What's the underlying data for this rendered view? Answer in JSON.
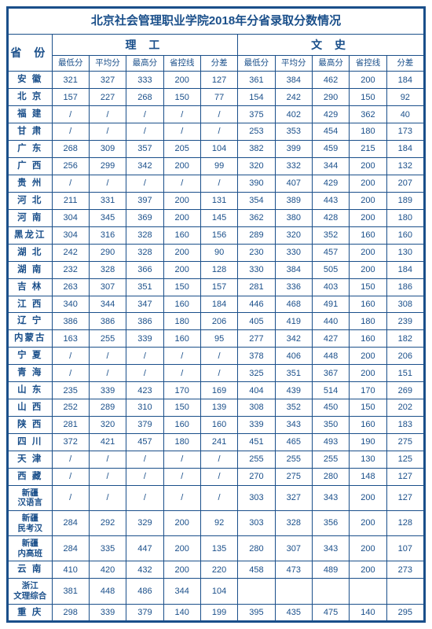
{
  "title": "北京社会管理职业学院2018年分省录取分数情况",
  "province_header": "省 份",
  "groups": [
    "理 工",
    "文 史"
  ],
  "sub_headers": [
    "最低分",
    "平均分",
    "最高分",
    "省控线",
    "分差",
    "最低分",
    "平均分",
    "最高分",
    "省控线",
    "分差"
  ],
  "rows": [
    {
      "p": "安 徽",
      "v": [
        "321",
        "327",
        "333",
        "200",
        "127",
        "361",
        "384",
        "462",
        "200",
        "184"
      ]
    },
    {
      "p": "北 京",
      "v": [
        "157",
        "227",
        "268",
        "150",
        "77",
        "154",
        "242",
        "290",
        "150",
        "92"
      ]
    },
    {
      "p": "福 建",
      "v": [
        "/",
        "/",
        "/",
        "/",
        "/",
        "375",
        "402",
        "429",
        "362",
        "40"
      ]
    },
    {
      "p": "甘 肃",
      "v": [
        "/",
        "/",
        "/",
        "/",
        "/",
        "253",
        "353",
        "454",
        "180",
        "173"
      ]
    },
    {
      "p": "广 东",
      "v": [
        "268",
        "309",
        "357",
        "205",
        "104",
        "382",
        "399",
        "459",
        "215",
        "184"
      ]
    },
    {
      "p": "广 西",
      "v": [
        "256",
        "299",
        "342",
        "200",
        "99",
        "320",
        "332",
        "344",
        "200",
        "132"
      ]
    },
    {
      "p": "贵 州",
      "v": [
        "/",
        "/",
        "/",
        "/",
        "/",
        "390",
        "407",
        "429",
        "200",
        "207"
      ]
    },
    {
      "p": "河 北",
      "v": [
        "211",
        "331",
        "397",
        "200",
        "131",
        "354",
        "389",
        "443",
        "200",
        "189"
      ]
    },
    {
      "p": "河 南",
      "v": [
        "304",
        "345",
        "369",
        "200",
        "145",
        "362",
        "380",
        "428",
        "200",
        "180"
      ]
    },
    {
      "p": "黑龙江",
      "v": [
        "304",
        "316",
        "328",
        "160",
        "156",
        "289",
        "320",
        "352",
        "160",
        "160"
      ]
    },
    {
      "p": "湖 北",
      "v": [
        "242",
        "290",
        "328",
        "200",
        "90",
        "230",
        "330",
        "457",
        "200",
        "130"
      ]
    },
    {
      "p": "湖 南",
      "v": [
        "232",
        "328",
        "366",
        "200",
        "128",
        "330",
        "384",
        "505",
        "200",
        "184"
      ]
    },
    {
      "p": "吉 林",
      "v": [
        "263",
        "307",
        "351",
        "150",
        "157",
        "281",
        "336",
        "403",
        "150",
        "186"
      ]
    },
    {
      "p": "江 西",
      "v": [
        "340",
        "344",
        "347",
        "160",
        "184",
        "446",
        "468",
        "491",
        "160",
        "308"
      ]
    },
    {
      "p": "辽 宁",
      "v": [
        "386",
        "386",
        "386",
        "180",
        "206",
        "405",
        "419",
        "440",
        "180",
        "239"
      ]
    },
    {
      "p": "内蒙古",
      "v": [
        "163",
        "255",
        "339",
        "160",
        "95",
        "277",
        "342",
        "427",
        "160",
        "182"
      ]
    },
    {
      "p": "宁 夏",
      "v": [
        "/",
        "/",
        "/",
        "/",
        "/",
        "378",
        "406",
        "448",
        "200",
        "206"
      ]
    },
    {
      "p": "青 海",
      "v": [
        "/",
        "/",
        "/",
        "/",
        "/",
        "325",
        "351",
        "367",
        "200",
        "151"
      ]
    },
    {
      "p": "山 东",
      "v": [
        "235",
        "339",
        "423",
        "170",
        "169",
        "404",
        "439",
        "514",
        "170",
        "269"
      ]
    },
    {
      "p": "山 西",
      "v": [
        "252",
        "289",
        "310",
        "150",
        "139",
        "308",
        "352",
        "450",
        "150",
        "202"
      ]
    },
    {
      "p": "陕 西",
      "v": [
        "281",
        "320",
        "379",
        "160",
        "160",
        "339",
        "343",
        "350",
        "160",
        "183"
      ]
    },
    {
      "p": "四 川",
      "v": [
        "372",
        "421",
        "457",
        "180",
        "241",
        "451",
        "465",
        "493",
        "190",
        "275"
      ]
    },
    {
      "p": "天 津",
      "v": [
        "/",
        "/",
        "/",
        "/",
        "/",
        "255",
        "255",
        "255",
        "130",
        "125"
      ]
    },
    {
      "p": "西 藏",
      "v": [
        "/",
        "/",
        "/",
        "/",
        "/",
        "270",
        "275",
        "280",
        "148",
        "127"
      ]
    },
    {
      "p": "新疆\n汉语言",
      "long": true,
      "v": [
        "/",
        "/",
        "/",
        "/",
        "/",
        "303",
        "327",
        "343",
        "200",
        "127"
      ]
    },
    {
      "p": "新疆\n民考汉",
      "long": true,
      "v": [
        "284",
        "292",
        "329",
        "200",
        "92",
        "303",
        "328",
        "356",
        "200",
        "128"
      ]
    },
    {
      "p": "新疆\n内高班",
      "long": true,
      "v": [
        "284",
        "335",
        "447",
        "200",
        "135",
        "280",
        "307",
        "343",
        "200",
        "107"
      ]
    },
    {
      "p": "云 南",
      "v": [
        "410",
        "420",
        "432",
        "200",
        "220",
        "458",
        "473",
        "489",
        "200",
        "273"
      ]
    },
    {
      "p": "浙江\n文理综合",
      "long": true,
      "v": [
        "381",
        "448",
        "486",
        "344",
        "104",
        "",
        "",
        "",
        "",
        ""
      ]
    },
    {
      "p": "重 庆",
      "v": [
        "298",
        "339",
        "379",
        "140",
        "199",
        "395",
        "435",
        "475",
        "140",
        "295"
      ]
    }
  ],
  "colors": {
    "border": "#1a4f8a",
    "text": "#1a4f8a",
    "background": "#ffffff"
  },
  "col_widths_pct": [
    10.5,
    8.95,
    8.95,
    8.95,
    8.95,
    8.95,
    8.95,
    8.95,
    8.95,
    8.95,
    8.95
  ]
}
